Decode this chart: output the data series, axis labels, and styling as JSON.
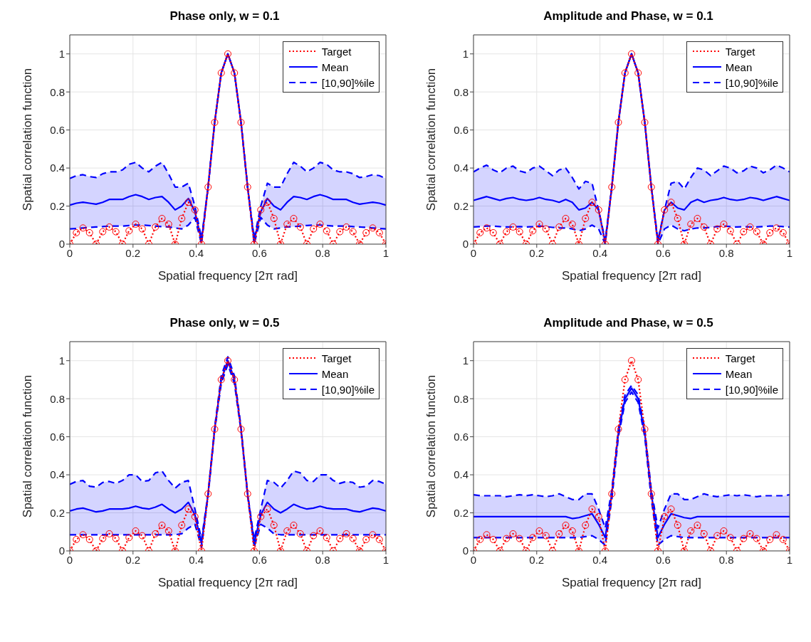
{
  "chart_data": [
    {
      "type": "line",
      "title": "Phase only, w = 0.1",
      "xlabel": "Spatial frequency [2π rad]",
      "ylabel": "Spatial correlation function",
      "xlim": [
        0,
        1
      ],
      "xticks": [
        0,
        0.2,
        0.4,
        0.6,
        0.8,
        1
      ],
      "ylim": [
        0,
        1.1
      ],
      "yticks": [
        0,
        0.2,
        0.4,
        0.6,
        0.8,
        1
      ],
      "grid": true,
      "legend": "top right",
      "x": [
        0,
        0.0208,
        0.0417,
        0.0625,
        0.0833,
        0.1042,
        0.125,
        0.1458,
        0.1667,
        0.1875,
        0.2083,
        0.2292,
        0.25,
        0.2708,
        0.2917,
        0.3125,
        0.3333,
        0.3542,
        0.375,
        0.3958,
        0.4167,
        0.4375,
        0.4583,
        0.4792,
        0.5,
        0.5208,
        0.5417,
        0.5625,
        0.5833,
        0.6042,
        0.625,
        0.6458,
        0.6667,
        0.6875,
        0.7083,
        0.7292,
        0.75,
        0.7708,
        0.7917,
        0.8125,
        0.8333,
        0.8542,
        0.875,
        0.8958,
        0.9167,
        0.9375,
        0.9583,
        0.9792,
        1
      ],
      "series": [
        {
          "name": "Target",
          "color": "#ff0000",
          "line_style": "dotted",
          "marker": "circle",
          "values": [
            0,
            0.06,
            0.085,
            0.06,
            0,
            0.065,
            0.09,
            0.065,
            0,
            0.07,
            0.105,
            0.08,
            0,
            0.09,
            0.135,
            0.105,
            0,
            0.135,
            0.22,
            0.18,
            0,
            0.3,
            0.64,
            0.9,
            1,
            0.9,
            0.64,
            0.3,
            0,
            0.18,
            0.22,
            0.135,
            0,
            0.105,
            0.135,
            0.09,
            0,
            0.08,
            0.105,
            0.07,
            0,
            0.065,
            0.09,
            0.065,
            0,
            0.06,
            0.085,
            0.06,
            0
          ]
        },
        {
          "name": "Mean",
          "color": "#0000ff",
          "line_style": "solid",
          "values": [
            0.205,
            0.215,
            0.22,
            0.215,
            0.21,
            0.22,
            0.235,
            0.235,
            0.235,
            0.25,
            0.26,
            0.25,
            0.235,
            0.245,
            0.25,
            0.22,
            0.18,
            0.2,
            0.24,
            0.17,
            0.02,
            0.3,
            0.64,
            0.9,
            1,
            0.9,
            0.64,
            0.3,
            0.02,
            0.17,
            0.24,
            0.2,
            0.18,
            0.22,
            0.25,
            0.245,
            0.235,
            0.25,
            0.26,
            0.25,
            0.235,
            0.235,
            0.235,
            0.22,
            0.21,
            0.215,
            0.22,
            0.215,
            0.205
          ],
          "lower": [
            0.08,
            0.082,
            0.085,
            0.088,
            0.09,
            0.092,
            0.095,
            0.095,
            0.095,
            0.098,
            0.1,
            0.1,
            0.098,
            0.095,
            0.092,
            0.09,
            0.085,
            0.08,
            0.1,
            0.14,
            0,
            0.3,
            0.64,
            0.9,
            1,
            0.9,
            0.64,
            0.3,
            0,
            0.14,
            0.1,
            0.08,
            0.085,
            0.09,
            0.092,
            0.095,
            0.098,
            0.1,
            0.1,
            0.098,
            0.095,
            0.095,
            0.095,
            0.092,
            0.09,
            0.088,
            0.085,
            0.082,
            0.08
          ],
          "upper": [
            0.345,
            0.36,
            0.365,
            0.355,
            0.35,
            0.37,
            0.38,
            0.38,
            0.39,
            0.42,
            0.43,
            0.4,
            0.38,
            0.41,
            0.43,
            0.37,
            0.3,
            0.3,
            0.32,
            0.2,
            0.03,
            0.3,
            0.64,
            0.9,
            1,
            0.9,
            0.64,
            0.3,
            0.03,
            0.2,
            0.32,
            0.3,
            0.3,
            0.37,
            0.43,
            0.41,
            0.38,
            0.4,
            0.43,
            0.42,
            0.39,
            0.38,
            0.38,
            0.37,
            0.35,
            0.355,
            0.365,
            0.36,
            0.345
          ]
        },
        {
          "name": "[10,90]%ile",
          "color": "#0000ff",
          "line_style": "dashed",
          "values": [
            0.345,
            0.36,
            0.365,
            0.355,
            0.35,
            0.37,
            0.38,
            0.38,
            0.39,
            0.42,
            0.43,
            0.4,
            0.38,
            0.41,
            0.43,
            0.37,
            0.3,
            0.3,
            0.32,
            0.2,
            0.03,
            0.3,
            0.64,
            0.9,
            1,
            0.9,
            0.64,
            0.3,
            0.03,
            0.2,
            0.32,
            0.3,
            0.3,
            0.37,
            0.43,
            0.41,
            0.38,
            0.4,
            0.43,
            0.42,
            0.39,
            0.38,
            0.38,
            0.37,
            0.35,
            0.355,
            0.365,
            0.36,
            0.345
          ]
        },
        {
          "color": "#0000ff",
          "line_style": "dashed",
          "values": [
            0.08,
            0.082,
            0.085,
            0.088,
            0.09,
            0.092,
            0.095,
            0.095,
            0.095,
            0.098,
            0.1,
            0.1,
            0.098,
            0.095,
            0.092,
            0.09,
            0.085,
            0.08,
            0.1,
            0.14,
            0,
            0.3,
            0.64,
            0.9,
            1,
            0.9,
            0.64,
            0.3,
            0,
            0.14,
            0.1,
            0.08,
            0.085,
            0.09,
            0.092,
            0.095,
            0.098,
            0.1,
            0.1,
            0.098,
            0.095,
            0.095,
            0.095,
            0.092,
            0.09,
            0.088,
            0.085,
            0.082,
            0.08
          ]
        }
      ]
    },
    {
      "type": "line",
      "title": "Amplitude and Phase, w = 0.1",
      "xlabel": "Spatial frequency [2π rad]",
      "ylabel": "Spatial correlation function",
      "xlim": [
        0,
        1
      ],
      "xticks": [
        0,
        0.2,
        0.4,
        0.6,
        0.8,
        1
      ],
      "ylim": [
        0,
        1.1
      ],
      "yticks": [
        0,
        0.2,
        0.4,
        0.6,
        0.8,
        1
      ],
      "grid": true,
      "legend": "top right",
      "x": [
        0,
        0.0208,
        0.0417,
        0.0625,
        0.0833,
        0.1042,
        0.125,
        0.1458,
        0.1667,
        0.1875,
        0.2083,
        0.2292,
        0.25,
        0.2708,
        0.2917,
        0.3125,
        0.3333,
        0.3542,
        0.375,
        0.3958,
        0.4167,
        0.4375,
        0.4583,
        0.4792,
        0.5,
        0.5208,
        0.5417,
        0.5625,
        0.5833,
        0.6042,
        0.625,
        0.6458,
        0.6667,
        0.6875,
        0.7083,
        0.7292,
        0.75,
        0.7708,
        0.7917,
        0.8125,
        0.8333,
        0.8542,
        0.875,
        0.8958,
        0.9167,
        0.9375,
        0.9583,
        0.9792,
        1
      ],
      "series": [
        {
          "name": "Target",
          "color": "#ff0000",
          "line_style": "dotted",
          "marker": "circle",
          "values": [
            0,
            0.06,
            0.085,
            0.06,
            0,
            0.065,
            0.09,
            0.065,
            0,
            0.07,
            0.105,
            0.08,
            0,
            0.09,
            0.135,
            0.105,
            0,
            0.135,
            0.22,
            0.18,
            0,
            0.3,
            0.64,
            0.9,
            1,
            0.9,
            0.64,
            0.3,
            0,
            0.18,
            0.22,
            0.135,
            0,
            0.105,
            0.135,
            0.09,
            0,
            0.08,
            0.105,
            0.07,
            0,
            0.065,
            0.09,
            0.065,
            0,
            0.06,
            0.085,
            0.06,
            0
          ]
        },
        {
          "name": "Mean",
          "color": "#0000ff",
          "line_style": "solid",
          "values": [
            0.23,
            0.24,
            0.25,
            0.24,
            0.23,
            0.24,
            0.245,
            0.235,
            0.23,
            0.235,
            0.245,
            0.235,
            0.23,
            0.22,
            0.235,
            0.22,
            0.18,
            0.19,
            0.22,
            0.18,
            0.01,
            0.3,
            0.64,
            0.9,
            1,
            0.9,
            0.64,
            0.3,
            0.01,
            0.18,
            0.22,
            0.19,
            0.18,
            0.22,
            0.235,
            0.22,
            0.23,
            0.235,
            0.245,
            0.235,
            0.23,
            0.235,
            0.245,
            0.24,
            0.23,
            0.24,
            0.25,
            0.24,
            0.23
          ],
          "lower": [
            0.09,
            0.092,
            0.095,
            0.095,
            0.092,
            0.09,
            0.09,
            0.092,
            0.09,
            0.092,
            0.095,
            0.092,
            0.088,
            0.085,
            0.085,
            0.08,
            0.07,
            0.08,
            0.1,
            0.08,
            0,
            0.3,
            0.64,
            0.9,
            1,
            0.9,
            0.64,
            0.3,
            0,
            0.08,
            0.1,
            0.08,
            0.07,
            0.08,
            0.085,
            0.085,
            0.088,
            0.092,
            0.095,
            0.092,
            0.09,
            0.092,
            0.09,
            0.09,
            0.092,
            0.095,
            0.095,
            0.092,
            0.09
          ],
          "upper": [
            0.38,
            0.4,
            0.415,
            0.39,
            0.375,
            0.4,
            0.41,
            0.385,
            0.375,
            0.4,
            0.41,
            0.385,
            0.36,
            0.39,
            0.4,
            0.35,
            0.29,
            0.33,
            0.32,
            0.18,
            0.02,
            0.3,
            0.64,
            0.9,
            1,
            0.9,
            0.64,
            0.3,
            0.02,
            0.18,
            0.32,
            0.33,
            0.29,
            0.35,
            0.4,
            0.39,
            0.36,
            0.385,
            0.41,
            0.4,
            0.375,
            0.385,
            0.41,
            0.4,
            0.375,
            0.39,
            0.415,
            0.4,
            0.38
          ]
        },
        {
          "name": "[10,90]%ile",
          "color": "#0000ff",
          "line_style": "dashed",
          "values": [
            0.38,
            0.4,
            0.415,
            0.39,
            0.375,
            0.4,
            0.41,
            0.385,
            0.375,
            0.4,
            0.41,
            0.385,
            0.36,
            0.39,
            0.4,
            0.35,
            0.29,
            0.33,
            0.32,
            0.18,
            0.02,
            0.3,
            0.64,
            0.9,
            1,
            0.9,
            0.64,
            0.3,
            0.02,
            0.18,
            0.32,
            0.33,
            0.29,
            0.35,
            0.4,
            0.39,
            0.36,
            0.385,
            0.41,
            0.4,
            0.375,
            0.385,
            0.41,
            0.4,
            0.375,
            0.39,
            0.415,
            0.4,
            0.38
          ]
        },
        {
          "color": "#0000ff",
          "line_style": "dashed",
          "values": [
            0.09,
            0.092,
            0.095,
            0.095,
            0.092,
            0.09,
            0.09,
            0.092,
            0.09,
            0.092,
            0.095,
            0.092,
            0.088,
            0.085,
            0.085,
            0.08,
            0.07,
            0.08,
            0.1,
            0.08,
            0,
            0.3,
            0.64,
            0.9,
            1,
            0.9,
            0.64,
            0.3,
            0,
            0.08,
            0.1,
            0.08,
            0.07,
            0.08,
            0.085,
            0.085,
            0.088,
            0.092,
            0.095,
            0.092,
            0.09,
            0.092,
            0.09,
            0.09,
            0.092,
            0.095,
            0.095,
            0.092,
            0.09
          ]
        }
      ]
    },
    {
      "type": "line",
      "title": "Phase only, w = 0.5",
      "xlabel": "Spatial frequency [2π rad]",
      "ylabel": "Spatial correlation function",
      "xlim": [
        0,
        1
      ],
      "xticks": [
        0,
        0.2,
        0.4,
        0.6,
        0.8,
        1
      ],
      "ylim": [
        0,
        1.1
      ],
      "yticks": [
        0,
        0.2,
        0.4,
        0.6,
        0.8,
        1
      ],
      "grid": true,
      "legend": "top right",
      "x": [
        0,
        0.0208,
        0.0417,
        0.0625,
        0.0833,
        0.1042,
        0.125,
        0.1458,
        0.1667,
        0.1875,
        0.2083,
        0.2292,
        0.25,
        0.2708,
        0.2917,
        0.3125,
        0.3333,
        0.3542,
        0.375,
        0.3958,
        0.4167,
        0.4375,
        0.4583,
        0.4792,
        0.5,
        0.5208,
        0.5417,
        0.5625,
        0.5833,
        0.6042,
        0.625,
        0.6458,
        0.6667,
        0.6875,
        0.7083,
        0.7292,
        0.75,
        0.7708,
        0.7917,
        0.8125,
        0.8333,
        0.8542,
        0.875,
        0.8958,
        0.9167,
        0.9375,
        0.9583,
        0.9792,
        1
      ],
      "series": [
        {
          "name": "Target",
          "color": "#ff0000",
          "line_style": "dotted",
          "marker": "circle",
          "values": [
            0,
            0.06,
            0.085,
            0.06,
            0,
            0.065,
            0.09,
            0.065,
            0,
            0.07,
            0.105,
            0.08,
            0,
            0.09,
            0.135,
            0.105,
            0,
            0.135,
            0.22,
            0.18,
            0,
            0.3,
            0.64,
            0.9,
            1,
            0.9,
            0.64,
            0.3,
            0,
            0.18,
            0.22,
            0.135,
            0,
            0.105,
            0.135,
            0.09,
            0,
            0.08,
            0.105,
            0.07,
            0,
            0.065,
            0.09,
            0.065,
            0,
            0.06,
            0.085,
            0.06,
            0
          ]
        },
        {
          "name": "Mean",
          "color": "#0000ff",
          "line_style": "solid",
          "values": [
            0.21,
            0.22,
            0.225,
            0.215,
            0.205,
            0.21,
            0.22,
            0.22,
            0.22,
            0.225,
            0.235,
            0.225,
            0.22,
            0.23,
            0.245,
            0.22,
            0.2,
            0.22,
            0.255,
            0.19,
            0.04,
            0.3,
            0.64,
            0.9,
            1,
            0.9,
            0.64,
            0.3,
            0.04,
            0.19,
            0.255,
            0.22,
            0.2,
            0.22,
            0.245,
            0.23,
            0.22,
            0.225,
            0.235,
            0.225,
            0.22,
            0.22,
            0.22,
            0.21,
            0.205,
            0.215,
            0.225,
            0.22,
            0.21
          ],
          "lower": [
            0.085,
            0.085,
            0.085,
            0.085,
            0.085,
            0.085,
            0.085,
            0.085,
            0.085,
            0.085,
            0.085,
            0.085,
            0.085,
            0.085,
            0.085,
            0.085,
            0.085,
            0.09,
            0.12,
            0.14,
            0.02,
            0.29,
            0.63,
            0.88,
            0.98,
            0.88,
            0.63,
            0.29,
            0.02,
            0.14,
            0.12,
            0.09,
            0.085,
            0.085,
            0.085,
            0.085,
            0.085,
            0.085,
            0.085,
            0.085,
            0.085,
            0.085,
            0.085,
            0.085,
            0.085,
            0.085,
            0.085,
            0.085,
            0.085
          ],
          "upper": [
            0.35,
            0.365,
            0.37,
            0.34,
            0.335,
            0.36,
            0.365,
            0.355,
            0.37,
            0.4,
            0.4,
            0.365,
            0.37,
            0.41,
            0.42,
            0.37,
            0.33,
            0.36,
            0.37,
            0.22,
            0.06,
            0.3,
            0.65,
            0.92,
            1.02,
            0.92,
            0.65,
            0.3,
            0.06,
            0.22,
            0.37,
            0.36,
            0.33,
            0.37,
            0.42,
            0.41,
            0.37,
            0.365,
            0.4,
            0.4,
            0.37,
            0.355,
            0.365,
            0.36,
            0.335,
            0.34,
            0.37,
            0.365,
            0.35
          ]
        },
        {
          "name": "[10,90]%ile",
          "color": "#0000ff",
          "line_style": "dashed",
          "values": [
            0.35,
            0.365,
            0.37,
            0.34,
            0.335,
            0.36,
            0.365,
            0.355,
            0.37,
            0.4,
            0.4,
            0.365,
            0.37,
            0.41,
            0.42,
            0.37,
            0.33,
            0.36,
            0.37,
            0.22,
            0.06,
            0.3,
            0.65,
            0.92,
            1.02,
            0.92,
            0.65,
            0.3,
            0.06,
            0.22,
            0.37,
            0.36,
            0.33,
            0.37,
            0.42,
            0.41,
            0.37,
            0.365,
            0.4,
            0.4,
            0.37,
            0.355,
            0.365,
            0.36,
            0.335,
            0.34,
            0.37,
            0.365,
            0.35
          ]
        },
        {
          "color": "#0000ff",
          "line_style": "dashed",
          "values": [
            0.085,
            0.085,
            0.085,
            0.085,
            0.085,
            0.085,
            0.085,
            0.085,
            0.085,
            0.085,
            0.085,
            0.085,
            0.085,
            0.085,
            0.085,
            0.085,
            0.085,
            0.09,
            0.12,
            0.14,
            0.02,
            0.29,
            0.63,
            0.88,
            0.98,
            0.88,
            0.63,
            0.29,
            0.02,
            0.14,
            0.12,
            0.09,
            0.085,
            0.085,
            0.085,
            0.085,
            0.085,
            0.085,
            0.085,
            0.085,
            0.085,
            0.085,
            0.085,
            0.085,
            0.085,
            0.085,
            0.085,
            0.085,
            0.085
          ]
        }
      ]
    },
    {
      "type": "line",
      "title": "Amplitude and Phase, w = 0.5",
      "xlabel": "Spatial frequency [2π rad]",
      "ylabel": "Spatial correlation function",
      "xlim": [
        0,
        1
      ],
      "xticks": [
        0,
        0.2,
        0.4,
        0.6,
        0.8,
        1
      ],
      "ylim": [
        0,
        1.1
      ],
      "yticks": [
        0,
        0.2,
        0.4,
        0.6,
        0.8,
        1
      ],
      "grid": true,
      "legend": "top right",
      "x": [
        0,
        0.0208,
        0.0417,
        0.0625,
        0.0833,
        0.1042,
        0.125,
        0.1458,
        0.1667,
        0.1875,
        0.2083,
        0.2292,
        0.25,
        0.2708,
        0.2917,
        0.3125,
        0.3333,
        0.3542,
        0.375,
        0.3958,
        0.4167,
        0.4375,
        0.4583,
        0.4792,
        0.5,
        0.5208,
        0.5417,
        0.5625,
        0.5833,
        0.6042,
        0.625,
        0.6458,
        0.6667,
        0.6875,
        0.7083,
        0.7292,
        0.75,
        0.7708,
        0.7917,
        0.8125,
        0.8333,
        0.8542,
        0.875,
        0.8958,
        0.9167,
        0.9375,
        0.9583,
        0.9792,
        1
      ],
      "series": [
        {
          "name": "Target",
          "color": "#ff0000",
          "line_style": "dotted",
          "marker": "circle",
          "values": [
            0,
            0.06,
            0.085,
            0.06,
            0,
            0.065,
            0.09,
            0.065,
            0,
            0.07,
            0.105,
            0.08,
            0,
            0.09,
            0.135,
            0.105,
            0,
            0.135,
            0.22,
            0.18,
            0,
            0.3,
            0.64,
            0.9,
            1,
            0.9,
            0.64,
            0.3,
            0,
            0.18,
            0.22,
            0.135,
            0,
            0.105,
            0.135,
            0.09,
            0,
            0.08,
            0.105,
            0.07,
            0,
            0.065,
            0.09,
            0.065,
            0,
            0.06,
            0.085,
            0.06,
            0
          ]
        },
        {
          "name": "Mean",
          "color": "#0000ff",
          "line_style": "solid",
          "values": [
            0.18,
            0.18,
            0.18,
            0.18,
            0.18,
            0.18,
            0.18,
            0.18,
            0.18,
            0.18,
            0.18,
            0.18,
            0.18,
            0.18,
            0.18,
            0.17,
            0.175,
            0.185,
            0.195,
            0.14,
            0.07,
            0.3,
            0.62,
            0.8,
            0.855,
            0.8,
            0.62,
            0.3,
            0.07,
            0.14,
            0.195,
            0.185,
            0.175,
            0.17,
            0.18,
            0.18,
            0.18,
            0.18,
            0.18,
            0.18,
            0.18,
            0.18,
            0.18,
            0.18,
            0.18,
            0.18,
            0.18,
            0.18,
            0.18
          ],
          "lower": [
            0.07,
            0.07,
            0.07,
            0.07,
            0.07,
            0.07,
            0.07,
            0.07,
            0.07,
            0.07,
            0.07,
            0.07,
            0.07,
            0.07,
            0.07,
            0.07,
            0.07,
            0.075,
            0.08,
            0.06,
            0.03,
            0.27,
            0.6,
            0.78,
            0.835,
            0.78,
            0.6,
            0.27,
            0.03,
            0.06,
            0.08,
            0.075,
            0.07,
            0.07,
            0.07,
            0.07,
            0.07,
            0.07,
            0.07,
            0.07,
            0.07,
            0.07,
            0.07,
            0.07,
            0.07,
            0.07,
            0.07,
            0.07,
            0.07
          ],
          "upper": [
            0.295,
            0.29,
            0.29,
            0.29,
            0.29,
            0.285,
            0.29,
            0.295,
            0.29,
            0.295,
            0.29,
            0.285,
            0.29,
            0.3,
            0.285,
            0.27,
            0.27,
            0.3,
            0.3,
            0.22,
            0.12,
            0.32,
            0.64,
            0.82,
            0.87,
            0.82,
            0.64,
            0.32,
            0.12,
            0.22,
            0.3,
            0.3,
            0.27,
            0.27,
            0.285,
            0.3,
            0.29,
            0.285,
            0.29,
            0.295,
            0.29,
            0.295,
            0.29,
            0.285,
            0.29,
            0.29,
            0.29,
            0.29,
            0.295
          ]
        },
        {
          "name": "[10,90]%ile",
          "color": "#0000ff",
          "line_style": "dashed",
          "values": [
            0.295,
            0.29,
            0.29,
            0.29,
            0.29,
            0.285,
            0.29,
            0.295,
            0.29,
            0.295,
            0.29,
            0.285,
            0.29,
            0.3,
            0.285,
            0.27,
            0.27,
            0.3,
            0.3,
            0.22,
            0.12,
            0.32,
            0.64,
            0.82,
            0.87,
            0.82,
            0.64,
            0.32,
            0.12,
            0.22,
            0.3,
            0.3,
            0.27,
            0.27,
            0.285,
            0.3,
            0.29,
            0.285,
            0.29,
            0.295,
            0.29,
            0.295,
            0.29,
            0.285,
            0.29,
            0.29,
            0.29,
            0.29,
            0.295
          ]
        },
        {
          "color": "#0000ff",
          "line_style": "dashed",
          "values": [
            0.07,
            0.07,
            0.07,
            0.07,
            0.07,
            0.07,
            0.07,
            0.07,
            0.07,
            0.07,
            0.07,
            0.07,
            0.07,
            0.07,
            0.07,
            0.07,
            0.07,
            0.075,
            0.08,
            0.06,
            0.03,
            0.27,
            0.6,
            0.78,
            0.835,
            0.78,
            0.6,
            0.27,
            0.03,
            0.06,
            0.08,
            0.075,
            0.07,
            0.07,
            0.07,
            0.07,
            0.07,
            0.07,
            0.07,
            0.07,
            0.07,
            0.07,
            0.07,
            0.07,
            0.07,
            0.07,
            0.07,
            0.07,
            0.07
          ]
        }
      ]
    }
  ]
}
